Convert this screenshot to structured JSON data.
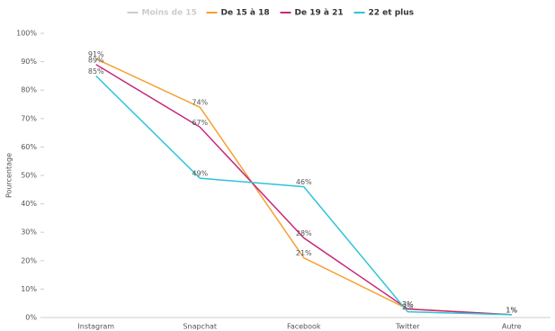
{
  "chart_data": {
    "type": "line",
    "y_label": "Pourcentage",
    "categories": [
      "Instagram",
      "Snapchat",
      "Facebook",
      "Twitter",
      "Autre"
    ],
    "series": [
      {
        "name": "Moins de 15",
        "color": "#cccccc",
        "hidden": true,
        "values": [
          null,
          null,
          null,
          null,
          null
        ]
      },
      {
        "name": "De 15 à 18",
        "color": "#f5a030",
        "values": [
          91,
          74,
          21,
          3,
          1
        ],
        "value_labels": [
          "91%",
          "74%",
          "21%",
          "3%",
          "1%"
        ]
      },
      {
        "name": "De 19 à 21",
        "color": "#c8287a",
        "values": [
          89,
          67,
          28,
          3,
          1
        ],
        "value_labels": [
          "89%",
          "67%",
          "28%",
          "3%",
          "1%"
        ]
      },
      {
        "name": "22 et plus",
        "color": "#2ec4d8",
        "values": [
          85,
          49,
          46,
          2,
          1
        ],
        "value_labels": [
          "85%",
          "49%",
          "46%",
          "2%",
          "1%"
        ]
      }
    ],
    "ylim": [
      0,
      100
    ],
    "yticks": [
      {
        "value": 0,
        "label": "0%"
      },
      {
        "value": 10,
        "label": "10%"
      },
      {
        "value": 20,
        "label": "20%"
      },
      {
        "value": 30,
        "label": "30%"
      },
      {
        "value": 40,
        "label": "40%"
      },
      {
        "value": 50,
        "label": "50%"
      },
      {
        "value": 60,
        "label": "60%"
      },
      {
        "value": 70,
        "label": "70%"
      },
      {
        "value": 80,
        "label": "80%"
      },
      {
        "value": 90,
        "label": "90%"
      },
      {
        "value": 100,
        "label": "100%"
      }
    ],
    "grid": false
  }
}
